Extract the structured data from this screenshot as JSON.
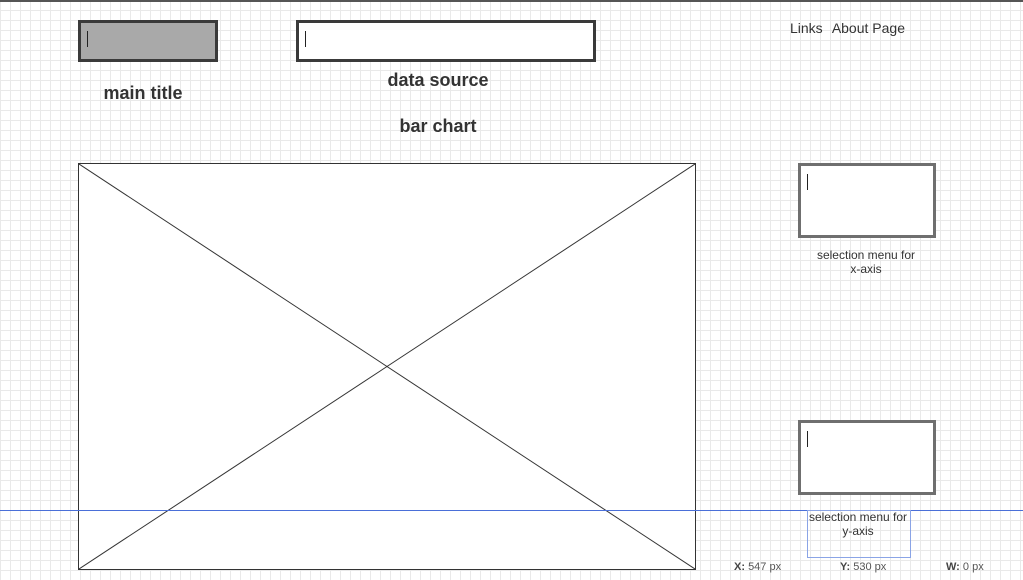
{
  "title_input": {
    "value": ""
  },
  "source_input": {
    "value": ""
  },
  "headings": {
    "main_title": "main title",
    "data_source": "data source",
    "bar_chart": "bar chart"
  },
  "nav": {
    "links": "Links",
    "about": "About Page"
  },
  "controls": {
    "x_axis_caption": [
      "selection menu for",
      "x-axis"
    ],
    "y_axis_caption": [
      "selection menu for",
      "y-axis"
    ]
  },
  "status_bar": {
    "x_label": "X:",
    "x_value": "547 px",
    "y_label": "Y:",
    "y_value": "530 px",
    "w_label": "W:",
    "w_value": "0 px"
  }
}
